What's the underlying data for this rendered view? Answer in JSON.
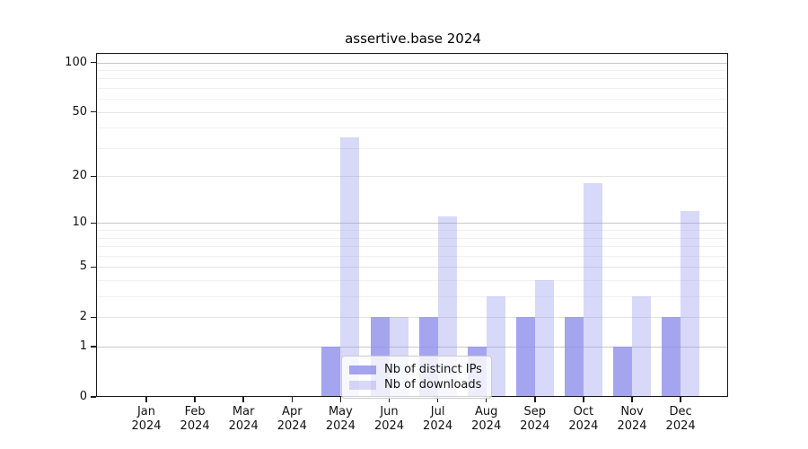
{
  "chart_data": {
    "type": "bar",
    "title": "assertive.base 2024",
    "categories": [
      "Jan",
      "Feb",
      "Mar",
      "Apr",
      "May",
      "Jun",
      "Jul",
      "Aug",
      "Sep",
      "Oct",
      "Nov",
      "Dec"
    ],
    "x_tick_year": "2024",
    "series": [
      {
        "name": "Nb of distinct IPs",
        "values": [
          0,
          0,
          0,
          0,
          1,
          2,
          2,
          1,
          2,
          2,
          1,
          2
        ],
        "color": "#8c8ceb",
        "alpha": 0.78
      },
      {
        "name": "Nb of downloads",
        "values": [
          0,
          0,
          0,
          0,
          35,
          2,
          11,
          3,
          4,
          18,
          3,
          12
        ],
        "color": "#8c8ceb",
        "alpha": 0.34
      }
    ],
    "y_scale": "log10(1+x)",
    "y_ticks": [
      0,
      1,
      2,
      5,
      10,
      20,
      50,
      100
    ],
    "y_minor_ticks": [
      3,
      4,
      6,
      7,
      8,
      9,
      30,
      40,
      60,
      70,
      80,
      90
    ],
    "ylim": [
      0,
      111
    ],
    "xlabel": "",
    "ylabel": "",
    "grid": "horizontal",
    "legend_position": "inside-bottom-center"
  },
  "colors": {
    "decade_gridline": "#c8c8c8",
    "mid_gridline": "#e4e4e4",
    "minor_gridline": "#f0f0f0",
    "axis": "#1a1a1a",
    "background": "#ffffff"
  }
}
